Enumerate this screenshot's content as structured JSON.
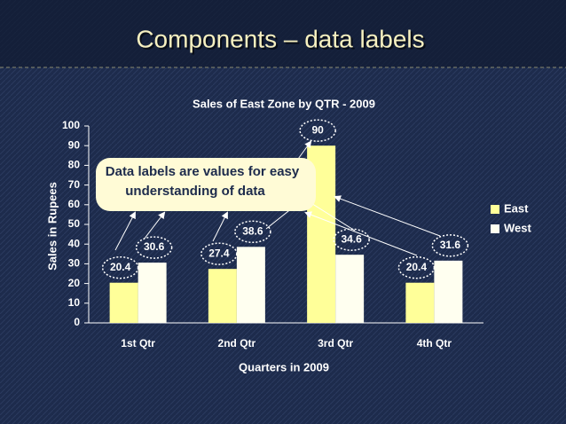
{
  "slide_title": "Components – data labels",
  "chart_data": {
    "type": "bar",
    "title": "Sales of East Zone by QTR - 2009",
    "x_label": "Quarters in 2009",
    "y_label": "Sales in Rupees",
    "categories": [
      "1st Qtr",
      "2nd Qtr",
      "3rd Qtr",
      "4th Qtr"
    ],
    "series": [
      {
        "name": "East",
        "color": "#ffff99",
        "values": [
          20.4,
          27.4,
          90,
          20.4
        ]
      },
      {
        "name": "West",
        "color": "#fffff0",
        "values": [
          30.6,
          38.6,
          34.6,
          31.6
        ]
      }
    ],
    "ylim": [
      0,
      100
    ],
    "yticks": [
      0,
      10,
      20,
      30,
      40,
      50,
      60,
      70,
      80,
      90,
      100
    ],
    "legend": "right",
    "annotation": [
      "Data labels are values for easy",
      "understanding of data"
    ]
  }
}
